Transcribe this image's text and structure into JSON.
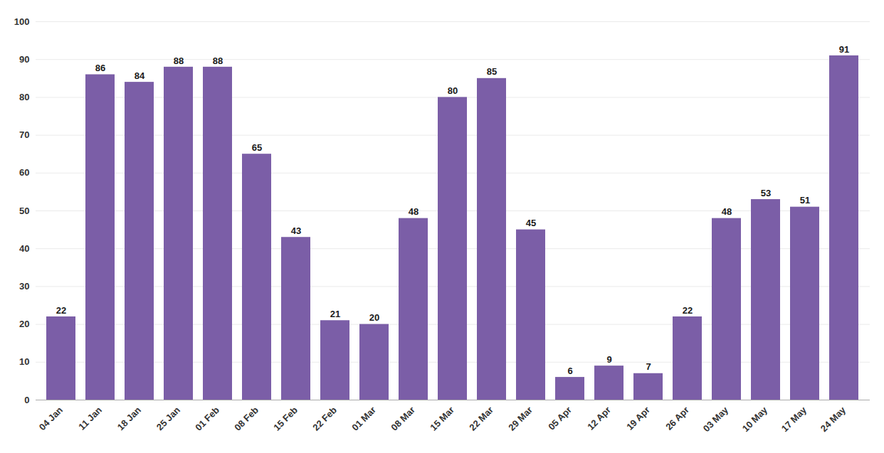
{
  "chart_data": {
    "type": "bar",
    "categories": [
      "04 Jan",
      "11 Jan",
      "18 Jan",
      "25 Jan",
      "01 Feb",
      "08 Feb",
      "15 Feb",
      "22 Feb",
      "01 Mar",
      "08 Mar",
      "15 Mar",
      "22 Mar",
      "29 Mar",
      "05 Apr",
      "12 Apr",
      "19 Apr",
      "26 Apr",
      "03 May",
      "10 May",
      "17 May",
      "24 May"
    ],
    "values": [
      22,
      86,
      84,
      88,
      88,
      65,
      43,
      21,
      20,
      48,
      80,
      85,
      45,
      6,
      9,
      7,
      22,
      48,
      53,
      51,
      91
    ],
    "color": "#7B5EA7",
    "ylim": [
      0,
      100
    ],
    "yticks": [
      0,
      10,
      20,
      30,
      40,
      50,
      60,
      70,
      80,
      90,
      100
    ],
    "grid": true,
    "data_labels": true
  }
}
